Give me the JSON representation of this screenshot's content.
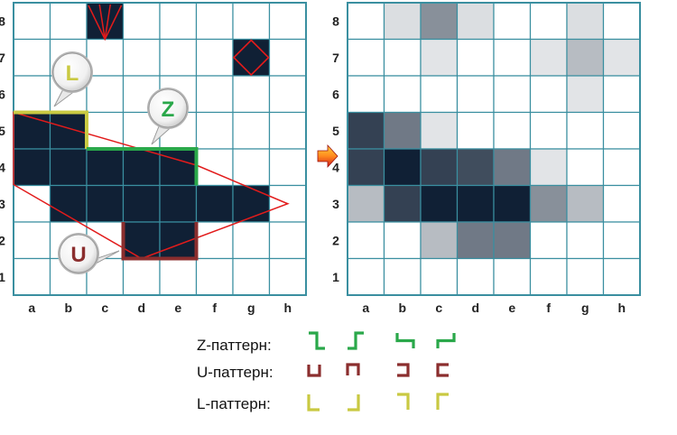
{
  "board_left": {
    "rank_labels": [
      "8",
      "7",
      "6",
      "5",
      "4",
      "3",
      "2",
      "1"
    ],
    "file_labels": [
      "a",
      "b",
      "c",
      "d",
      "e",
      "f",
      "g",
      "h"
    ],
    "filled_cells": [
      "a5",
      "b5",
      "a4",
      "b4",
      "c4",
      "d4",
      "e4",
      "b3",
      "c3",
      "d3",
      "e3",
      "f3",
      "g3",
      "d2",
      "e2",
      "c8",
      "g7"
    ],
    "callouts": {
      "L": {
        "text": "L",
        "color": "#c9c942"
      },
      "Z": {
        "text": "Z",
        "color": "#2aa84a"
      },
      "U": {
        "text": "U",
        "color": "#8b2e2e"
      }
    }
  },
  "board_right": {
    "rank_labels": [
      "8",
      "7",
      "6",
      "5",
      "4",
      "3",
      "2",
      "1"
    ],
    "file_labels": [
      "a",
      "b",
      "c",
      "d",
      "e",
      "f",
      "g",
      "h"
    ],
    "shaded_cells": [
      {
        "cell": "b8",
        "level": 0.15
      },
      {
        "cell": "c8",
        "level": 0.5
      },
      {
        "cell": "d8",
        "level": 0.15
      },
      {
        "cell": "g8",
        "level": 0.15
      },
      {
        "cell": "c7",
        "level": 0.12
      },
      {
        "cell": "f7",
        "level": 0.12
      },
      {
        "cell": "g7",
        "level": 0.3
      },
      {
        "cell": "h7",
        "level": 0.12
      },
      {
        "cell": "g6",
        "level": 0.12
      },
      {
        "cell": "a5",
        "level": 0.85
      },
      {
        "cell": "b5",
        "level": 0.6
      },
      {
        "cell": "c5",
        "level": 0.12
      },
      {
        "cell": "a4",
        "level": 0.85
      },
      {
        "cell": "b4",
        "level": 1.0
      },
      {
        "cell": "c4",
        "level": 0.85
      },
      {
        "cell": "d4",
        "level": 0.8
      },
      {
        "cell": "e4",
        "level": 0.6
      },
      {
        "cell": "f4",
        "level": 0.12
      },
      {
        "cell": "a3",
        "level": 0.3
      },
      {
        "cell": "b3",
        "level": 0.85
      },
      {
        "cell": "c3",
        "level": 1.0
      },
      {
        "cell": "d3",
        "level": 1.0
      },
      {
        "cell": "e3",
        "level": 1.0
      },
      {
        "cell": "f3",
        "level": 0.5
      },
      {
        "cell": "g3",
        "level": 0.3
      },
      {
        "cell": "c2",
        "level": 0.3
      },
      {
        "cell": "d2",
        "level": 0.6
      },
      {
        "cell": "e2",
        "level": 0.6
      }
    ]
  },
  "arrow": {
    "name": "arrow-right-icon"
  },
  "legend": [
    {
      "label": "Z-паттерн:",
      "pattern": "Z",
      "color": "#2aa84a"
    },
    {
      "label": "U-паттерн:",
      "pattern": "U",
      "color": "#8b2e2e"
    },
    {
      "label": "L-паттерн:",
      "pattern": "L",
      "color": "#c9c942"
    }
  ],
  "colors": {
    "grid_line": "#3a8fa0",
    "dark_cell": "#102035",
    "polygon": "#e21b1b",
    "board_border": "#3a8fa0"
  }
}
